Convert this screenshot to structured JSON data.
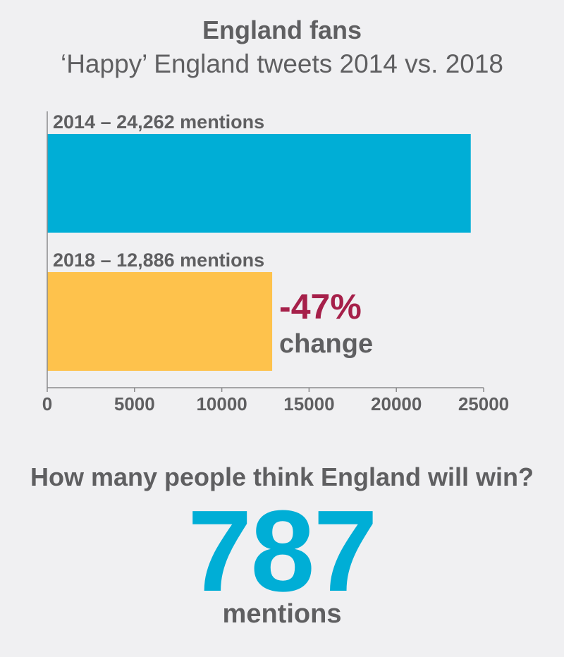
{
  "header": {
    "title": "England fans",
    "subtitle": "‘Happy’ England tweets 2014 vs. 2018"
  },
  "chart_data": {
    "type": "bar",
    "orientation": "horizontal",
    "categories": [
      "2014",
      "2018"
    ],
    "values": [
      24262,
      12886
    ],
    "bar_labels": [
      "2014 – 24,262 mentions",
      "2018 – 12,886 mentions"
    ],
    "colors": [
      "#00aed6",
      "#fec24c"
    ],
    "xlim": [
      0,
      25000
    ],
    "x_ticks": [
      "0",
      "5000",
      "10000",
      "15000",
      "20000",
      "25000"
    ],
    "x_tick_values": [
      0,
      5000,
      10000,
      15000,
      20000,
      25000
    ],
    "grid": false,
    "annotation": {
      "value": "-47%",
      "label": "change",
      "color": "#a6204a"
    }
  },
  "footer": {
    "question": "How many people think England will win?",
    "number": "787",
    "unit": "mentions",
    "accent_color": "#00aed6"
  }
}
